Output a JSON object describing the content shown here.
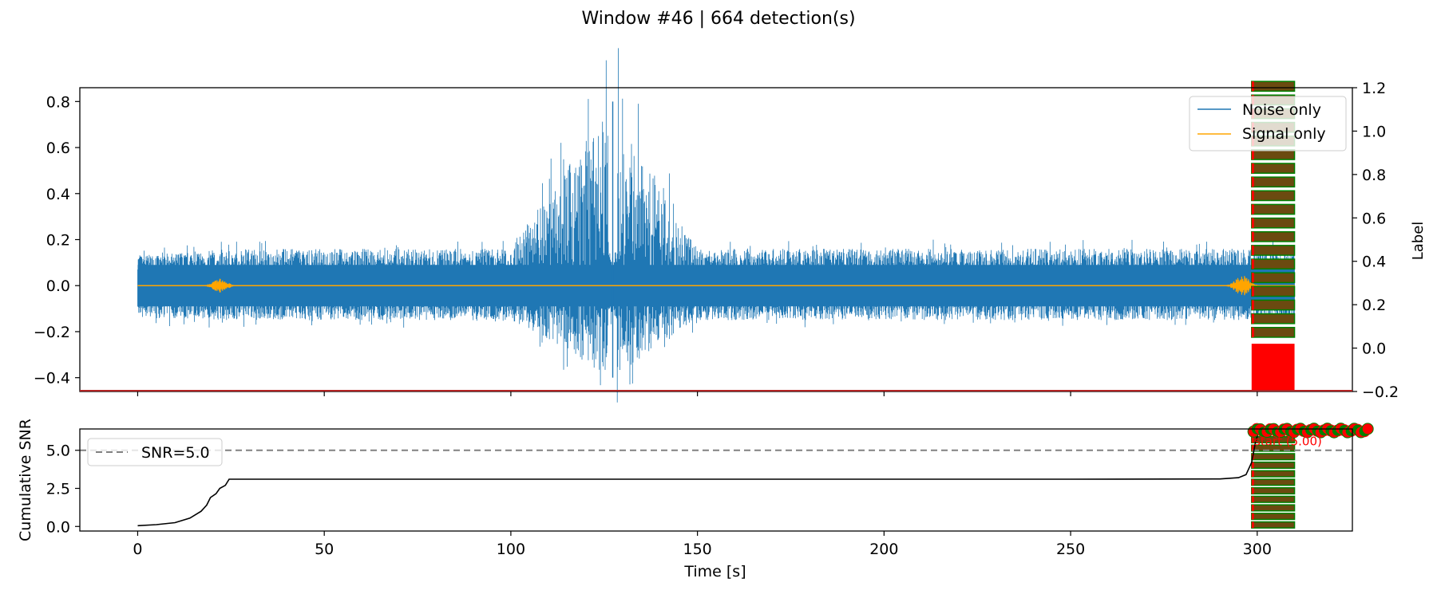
{
  "figure": {
    "title": "Window #46 | 664 detection(s)"
  },
  "chart_data": [
    {
      "type": "line",
      "panel": "top",
      "xlim": [
        -15.5,
        325.5
      ],
      "ylim": [
        -0.46,
        0.86
      ],
      "y_ticks": [
        -0.4,
        -0.2,
        0.0,
        0.2,
        0.4,
        0.6,
        0.8
      ],
      "y_tick_labels": [
        "−0.4",
        "−0.2",
        "0.0",
        "0.2",
        "0.4",
        "0.6",
        "0.8"
      ],
      "right_axis": {
        "label": "Label",
        "ylim": [
          -0.2,
          1.2
        ],
        "ticks": [
          -0.2,
          0.0,
          0.2,
          0.4,
          0.6,
          0.8,
          1.0,
          1.2
        ],
        "tick_labels": [
          "−0.2",
          "0.0",
          "0.2",
          "0.4",
          "0.6",
          "0.8",
          "1.0",
          "1.2"
        ]
      },
      "legend": {
        "position": "upper-right"
      },
      "series": [
        {
          "name": "Noise only",
          "color": "#1f77b4",
          "x_range": [
            0,
            310
          ],
          "envelope": [
            {
              "x": 0,
              "lo": -0.14,
              "hi": 0.13
            },
            {
              "x": 25,
              "lo": -0.15,
              "hi": 0.16
            },
            {
              "x": 50,
              "lo": -0.15,
              "hi": 0.16
            },
            {
              "x": 75,
              "lo": -0.15,
              "hi": 0.16
            },
            {
              "x": 100,
              "lo": -0.15,
              "hi": 0.16
            },
            {
              "x": 127,
              "lo": -0.4,
              "hi": 0.8
            },
            {
              "x": 150,
              "lo": -0.15,
              "hi": 0.16
            },
            {
              "x": 200,
              "lo": -0.15,
              "hi": 0.16
            },
            {
              "x": 250,
              "lo": -0.15,
              "hi": 0.16
            },
            {
              "x": 300,
              "lo": -0.15,
              "hi": 0.16
            },
            {
              "x": 310,
              "lo": -0.15,
              "hi": 0.16
            }
          ],
          "min_peak": -0.4,
          "max_peak": 0.8
        },
        {
          "name": "Signal only",
          "color": "#ffa500",
          "bursts": [
            {
              "x": 22,
              "amplitude": 0.02
            },
            {
              "x": 296,
              "amplitude": 0.03
            }
          ]
        }
      ],
      "label_markers": {
        "x_range": [
          298.5,
          310
        ],
        "fill_color": "#ff0000",
        "dash_colors": [
          "#ff0000",
          "#008000"
        ],
        "right_y_range": [
          -0.2,
          1.2
        ]
      }
    },
    {
      "type": "line",
      "panel": "bottom",
      "xlabel": "Time [s]",
      "ylabel": "Cumulative SNR",
      "xlim": [
        -15.5,
        325.5
      ],
      "ylim": [
        -0.3,
        6.4
      ],
      "x_ticks": [
        0,
        50,
        100,
        150,
        200,
        250,
        300
      ],
      "x_tick_labels": [
        "0",
        "50",
        "100",
        "150",
        "200",
        "250",
        "300"
      ],
      "y_ticks": [
        0.0,
        2.5,
        5.0
      ],
      "y_tick_labels": [
        "0.0",
        "2.5",
        "5.0"
      ],
      "legend": {
        "position": "upper-left"
      },
      "series": [
        {
          "name": "cumulative-snr",
          "color": "#000000",
          "points": [
            [
              0,
              0.05
            ],
            [
              5,
              0.12
            ],
            [
              10,
              0.25
            ],
            [
              14,
              0.55
            ],
            [
              17,
              1.0
            ],
            [
              18.5,
              1.4
            ],
            [
              19.5,
              1.9
            ],
            [
              21,
              2.15
            ],
            [
              22,
              2.5
            ],
            [
              23.5,
              2.7
            ],
            [
              24.5,
              3.1
            ],
            [
              50,
              3.1
            ],
            [
              100,
              3.1
            ],
            [
              150,
              3.1
            ],
            [
              200,
              3.1
            ],
            [
              250,
              3.1
            ],
            [
              290,
              3.12
            ],
            [
              295,
              3.2
            ],
            [
              297,
              3.4
            ],
            [
              298.5,
              4.2
            ],
            [
              299.5,
              5.5
            ],
            [
              300.5,
              6.3
            ]
          ]
        },
        {
          "name": "SNR=5.0",
          "color": "#808080",
          "style": "dashed",
          "y": 5.0
        }
      ],
      "annotation": {
        "text": "start (5.00)",
        "color": "#ff0000",
        "x": 299.2,
        "y": 5.0
      },
      "detections": {
        "x_range": [
          299,
          330
        ],
        "y": 6.4,
        "colors": [
          "#ff0000",
          "#008000"
        ]
      }
    }
  ]
}
